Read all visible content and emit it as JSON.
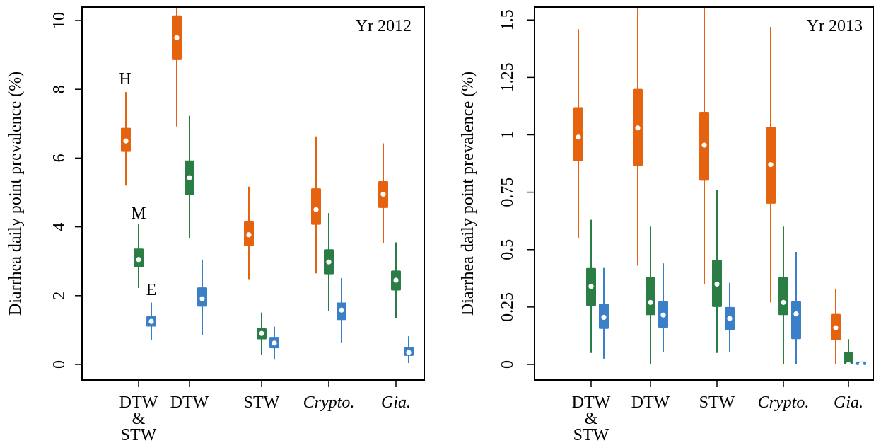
{
  "chart_data": [
    {
      "type": "boxplot",
      "panel_label": "Yr 2012",
      "ylabel": "Diarrhea daily point prevalence (%)",
      "ylim": [
        0,
        10.4
      ],
      "yticks": [
        0,
        2,
        4,
        6,
        8,
        10
      ],
      "ytick_labels": [
        "0",
        "2",
        "4",
        "6",
        "8",
        "10"
      ],
      "categories": [
        {
          "lines": [
            "DTW",
            "&",
            "STW"
          ],
          "italic": false
        },
        {
          "lines": [
            "DTW"
          ],
          "italic": false
        },
        {
          "lines": [
            "STW"
          ],
          "italic": false
        },
        {
          "lines": [
            "Crypto."
          ],
          "italic": true
        },
        {
          "lines": [
            "Gia."
          ],
          "italic": true
        }
      ],
      "series_annotations": [
        "H",
        "M",
        "E"
      ],
      "series": [
        {
          "color": "#E5620F",
          "values": [
            {
              "min": 5.2,
              "q1": 6.18,
              "median": 6.5,
              "q3": 6.88,
              "max": 7.92
            },
            {
              "min": 6.92,
              "q1": 8.85,
              "median": 9.5,
              "q3": 10.15,
              "max": 10.4
            },
            {
              "min": 2.48,
              "q1": 3.45,
              "median": 3.77,
              "q3": 4.18,
              "max": 5.17
            },
            {
              "min": 2.65,
              "q1": 4.06,
              "median": 4.5,
              "q3": 5.12,
              "max": 6.63
            },
            {
              "min": 3.52,
              "q1": 4.55,
              "median": 4.95,
              "q3": 5.33,
              "max": 6.43
            }
          ]
        },
        {
          "color": "#2A7D44",
          "values": [
            {
              "min": 2.22,
              "q1": 2.82,
              "median": 3.05,
              "q3": 3.37,
              "max": 4.08
            },
            {
              "min": 3.67,
              "q1": 4.93,
              "median": 5.43,
              "q3": 5.93,
              "max": 7.23
            },
            {
              "min": 0.28,
              "q1": 0.73,
              "median": 0.9,
              "q3": 1.05,
              "max": 1.51
            },
            {
              "min": 1.55,
              "q1": 2.62,
              "median": 2.98,
              "q3": 3.35,
              "max": 4.4
            },
            {
              "min": 1.35,
              "q1": 2.15,
              "median": 2.45,
              "q3": 2.73,
              "max": 3.55
            }
          ]
        },
        {
          "color": "#3B7FC8",
          "values": [
            {
              "min": 0.7,
              "q1": 1.1,
              "median": 1.25,
              "q3": 1.4,
              "max": 1.8
            },
            {
              "min": 0.86,
              "q1": 1.68,
              "median": 1.91,
              "q3": 2.24,
              "max": 3.05
            },
            {
              "min": 0.14,
              "q1": 0.47,
              "median": 0.62,
              "q3": 0.8,
              "max": 1.1
            },
            {
              "min": 0.64,
              "q1": 1.29,
              "median": 1.58,
              "q3": 1.8,
              "max": 2.51
            },
            {
              "min": 0.04,
              "q1": 0.25,
              "median": 0.35,
              "q3": 0.51,
              "max": 0.82
            }
          ]
        }
      ]
    },
    {
      "type": "boxplot",
      "panel_label": "Yr 2013",
      "ylabel": "Diarrhea daily point prevalence (%)",
      "ylim": [
        0,
        1.56
      ],
      "yticks": [
        0,
        0.25,
        0.5,
        0.75,
        1,
        1.25,
        1.5
      ],
      "ytick_labels": [
        "0",
        "0.25",
        "0.5",
        "0.75",
        "1",
        "1.25",
        "1.5"
      ],
      "categories": [
        {
          "lines": [
            "DTW",
            "&",
            "STW"
          ],
          "italic": false
        },
        {
          "lines": [
            "DTW"
          ],
          "italic": false
        },
        {
          "lines": [
            "STW"
          ],
          "italic": false
        },
        {
          "lines": [
            "Crypto."
          ],
          "italic": true
        },
        {
          "lines": [
            "Gia."
          ],
          "italic": true
        }
      ],
      "series": [
        {
          "color": "#E5620F",
          "values": [
            {
              "min": 0.55,
              "q1": 0.885,
              "median": 0.99,
              "q3": 1.12,
              "max": 1.46
            },
            {
              "min": 0.43,
              "q1": 0.865,
              "median": 1.03,
              "q3": 1.2,
              "max": 1.56
            },
            {
              "min": 0.35,
              "q1": 0.8,
              "median": 0.955,
              "q3": 1.1,
              "max": 1.56
            },
            {
              "min": 0.27,
              "q1": 0.7,
              "median": 0.87,
              "q3": 1.035,
              "max": 1.47
            },
            {
              "min": 0.0,
              "q1": 0.105,
              "median": 0.16,
              "q3": 0.22,
              "max": 0.33
            }
          ]
        },
        {
          "color": "#2A7D44",
          "values": [
            {
              "min": 0.05,
              "q1": 0.255,
              "median": 0.34,
              "q3": 0.42,
              "max": 0.63
            },
            {
              "min": 0.0,
              "q1": 0.215,
              "median": 0.27,
              "q3": 0.38,
              "max": 0.6
            },
            {
              "min": 0.05,
              "q1": 0.25,
              "median": 0.35,
              "q3": 0.455,
              "max": 0.76
            },
            {
              "min": 0.0,
              "q1": 0.215,
              "median": 0.27,
              "q3": 0.38,
              "max": 0.6
            },
            {
              "min": 0.0,
              "q1": 0.0,
              "median": 0.0,
              "q3": 0.055,
              "max": 0.11
            }
          ]
        },
        {
          "color": "#3B7FC8",
          "values": [
            {
              "min": 0.025,
              "q1": 0.155,
              "median": 0.205,
              "q3": 0.265,
              "max": 0.42
            },
            {
              "min": 0.055,
              "q1": 0.16,
              "median": 0.215,
              "q3": 0.275,
              "max": 0.44
            },
            {
              "min": 0.055,
              "q1": 0.15,
              "median": 0.2,
              "q3": 0.25,
              "max": 0.355
            },
            {
              "min": 0.0,
              "q1": 0.11,
              "median": 0.22,
              "q3": 0.275,
              "max": 0.49
            },
            {
              "min": 0.0,
              "q1": 0.0,
              "median": 0.0,
              "q3": 0.01,
              "max": 0.01
            }
          ]
        }
      ]
    }
  ]
}
